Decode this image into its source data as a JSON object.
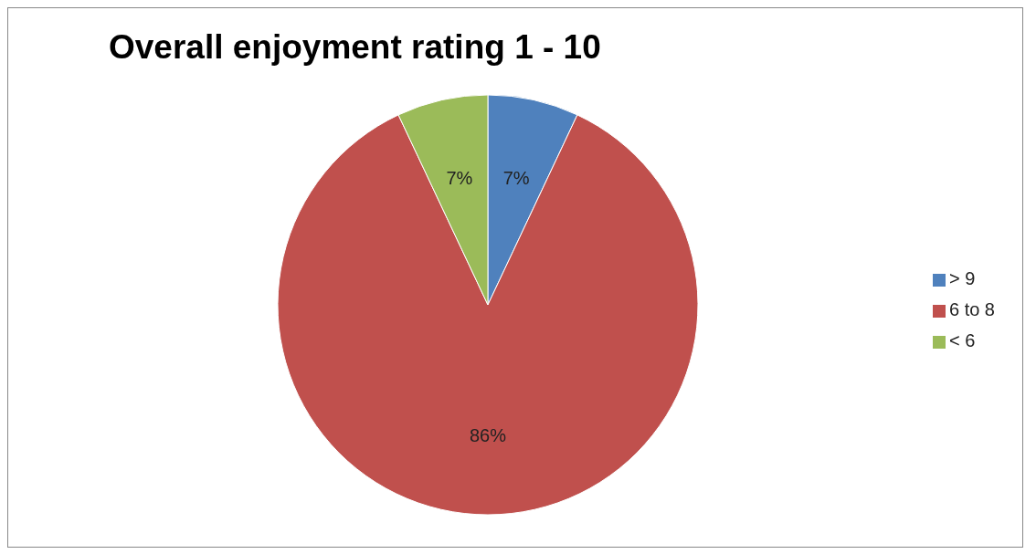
{
  "chart_data": {
    "type": "pie",
    "title": "Overall enjoyment rating 1 - 10",
    "categories": [
      "> 9",
      "6 to 8",
      "< 6"
    ],
    "values": [
      7,
      86,
      7
    ],
    "value_labels": [
      "7%",
      "86%",
      "7%"
    ],
    "colors": [
      "#4f81bd",
      "#c0504d",
      "#9bbb59"
    ],
    "legend": "right"
  }
}
